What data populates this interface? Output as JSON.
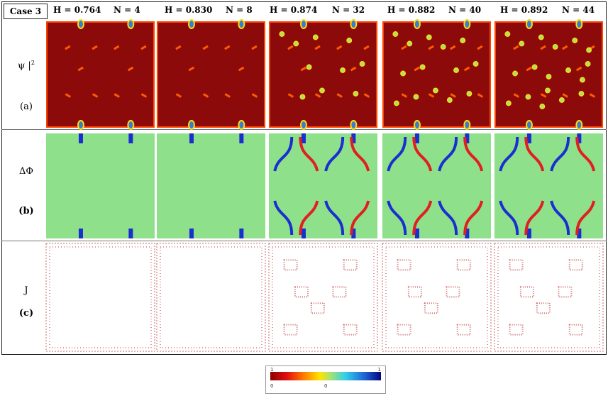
{
  "figure": {
    "case_label": "Case 3",
    "columns": [
      {
        "h": "H = 0.764",
        "n": "N = 4"
      },
      {
        "h": "H = 0.830",
        "n": "N = 8"
      },
      {
        "h": "H = 0.874",
        "n": "N = 32"
      },
      {
        "h": "H = 0.882",
        "n": "N = 40"
      },
      {
        "h": "H = 0.892",
        "n": "N = 44"
      }
    ],
    "rows": [
      {
        "quantity": "ψ |",
        "superscript": "2",
        "tag": "(a)"
      },
      {
        "quantity": "ΔΦ",
        "tag": "(b)"
      },
      {
        "quantity": "J",
        "tag": "(c)"
      }
    ],
    "colorbar": {
      "min_label": "0",
      "mid_label": "0",
      "max_label": "1"
    }
  }
}
